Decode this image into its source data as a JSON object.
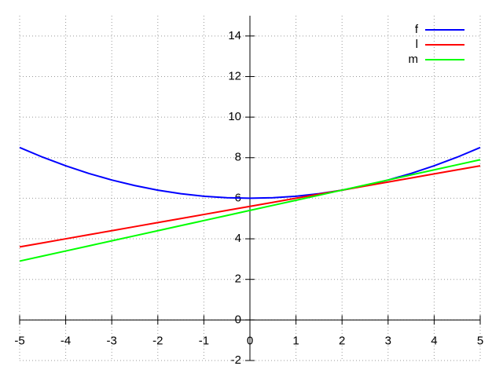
{
  "chart_data": {
    "type": "line",
    "x": [
      -5,
      -4.5,
      -4,
      -3.5,
      -3,
      -2.5,
      -2,
      -1.5,
      -1,
      -0.5,
      0,
      0.5,
      1,
      1.5,
      2,
      2.5,
      3,
      3.5,
      4,
      4.5,
      5
    ],
    "series": [
      {
        "name": "f",
        "color": "#0000ff",
        "values": [
          8.5,
          8.025,
          7.6,
          7.225,
          6.9,
          6.625,
          6.4,
          6.225,
          6.1,
          6.025,
          6,
          6.025,
          6.1,
          6.225,
          6.4,
          6.625,
          6.9,
          7.225,
          7.6,
          8.025,
          8.5
        ]
      },
      {
        "name": "l",
        "color": "#ff0000",
        "values": [
          3.6,
          3.8,
          4.0,
          4.2,
          4.4,
          4.6,
          4.8,
          5.0,
          5.2,
          5.4,
          5.6,
          5.8,
          6.0,
          6.2,
          6.4,
          6.6,
          6.8,
          7.0,
          7.2,
          7.4,
          7.6
        ]
      },
      {
        "name": "m",
        "color": "#00ff00",
        "values": [
          2.9,
          3.15,
          3.4,
          3.65,
          3.9,
          4.15,
          4.4,
          4.65,
          4.9,
          5.15,
          5.4,
          5.65,
          5.9,
          6.15,
          6.4,
          6.65,
          6.9,
          7.15,
          7.4,
          7.65,
          7.9
        ]
      }
    ],
    "xlim": [
      -5,
      5
    ],
    "xticks": [
      -5,
      -4,
      -3,
      -2,
      -1,
      0,
      1,
      2,
      3,
      4,
      5
    ],
    "ylim": [
      -2,
      15
    ],
    "yticks": [
      -2,
      0,
      2,
      4,
      6,
      8,
      10,
      12,
      14
    ],
    "grid": true,
    "legend": "top-right"
  }
}
